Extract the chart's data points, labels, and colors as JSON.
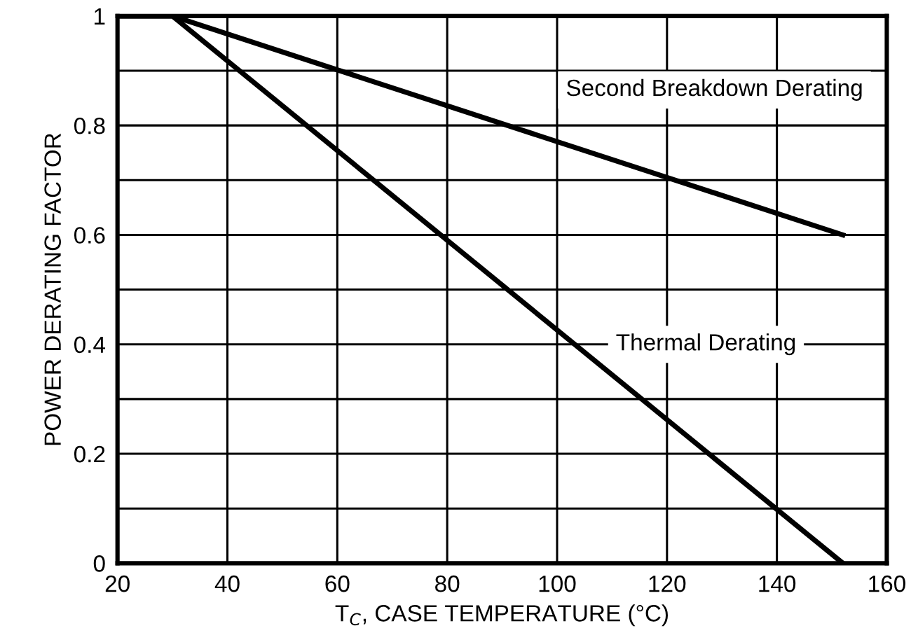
{
  "chart_data": {
    "type": "line",
    "xlabel": "T$_{C}$, CASE TEMPERATURE (°C)",
    "ylabel": "POWER DERATING FACTOR",
    "series": [
      {
        "x": [
          20,
          30,
          152
        ],
        "values": [
          1,
          1,
          0.6
        ],
        "color": "#000000"
      },
      {
        "x": [
          20,
          30,
          152
        ],
        "values": [
          1,
          1,
          0
        ],
        "color": "#000000"
      }
    ],
    "xlim": [
      20,
      160
    ],
    "xticks": [
      20,
      40,
      60,
      80,
      100,
      120,
      140,
      160
    ],
    "ylim": [
      0,
      1
    ],
    "yticks": [
      0,
      {
        "value": 0.1,
        "label": null
      },
      0.2,
      {
        "value": 0.3,
        "label": null
      },
      0.4,
      {
        "value": 0.5,
        "label": null
      },
      0.6,
      {
        "value": 0.7,
        "label": null
      },
      0.8,
      {
        "value": 0.9,
        "label": null
      },
      1
    ],
    "grid": true,
    "marker": "none",
    "line_style": "solid",
    "annotations": [
      "Second Breakdown Derating",
      "Thermal Derating"
    ]
  }
}
